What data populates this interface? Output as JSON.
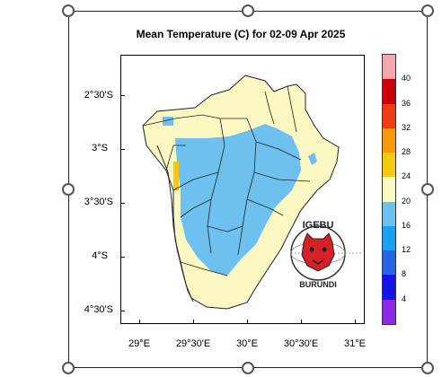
{
  "title": "Mean Temperature (C) for 02-09 Apr 2025",
  "y_ticks": [
    "2°30'S",
    "3°S",
    "3°30'S",
    "4°S",
    "4°30'S"
  ],
  "x_ticks": [
    "29°E",
    "29°30'E",
    "30°E",
    "30°30'E",
    "31°E"
  ],
  "colorbar": {
    "labels": [
      "40",
      "36",
      "32",
      "28",
      "24",
      "20",
      "16",
      "12",
      "8",
      "4"
    ],
    "colors": [
      "#f4a8ad",
      "#c8000a",
      "#f03c14",
      "#f59b0a",
      "#f5c814",
      "#fcf8c4",
      "#6ec0ee",
      "#1aa0f0",
      "#2864e6",
      "#1414e6",
      "#8c28e6"
    ]
  },
  "logo": {
    "top_text": "IGEBU",
    "bottom_text": "BURUNDI"
  },
  "map_colors": {
    "cool": "#6ec0ee",
    "mild": "#fcf8c4",
    "warm": "#f5c814",
    "border": "#222222"
  }
}
